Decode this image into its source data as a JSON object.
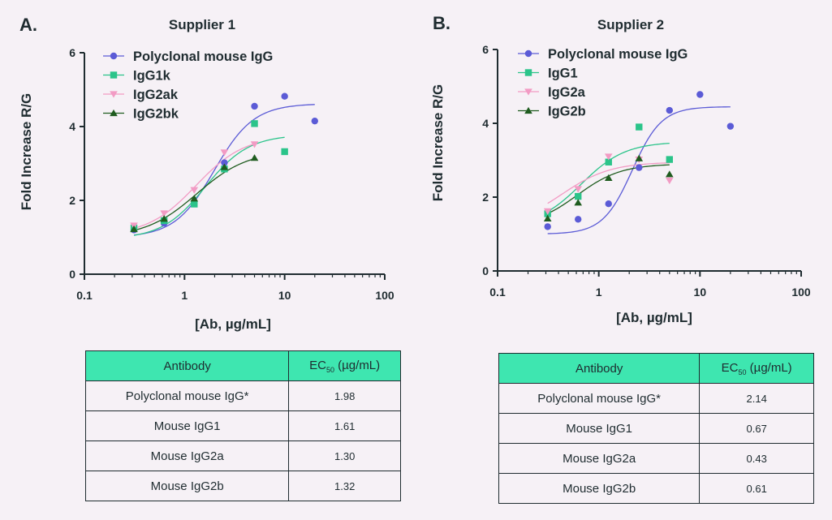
{
  "panels": [
    {
      "letter": "A.",
      "title": "Supplier 1",
      "xlabel": "[Ab, µg/mL]",
      "ylabel": "Fold Increase R/G",
      "x_ticks": [
        "0.1",
        "1",
        "10",
        "100"
      ],
      "y_ticks": [
        "0",
        "2",
        "4",
        "6"
      ],
      "table": {
        "col1": "Antibody",
        "col2_pre": "EC",
        "col2_sub": "50",
        "col2_post": " (µg/mL)",
        "rows": [
          {
            "name": "Polyclonal mouse IgG*",
            "value": "1.98"
          },
          {
            "name": "Mouse IgG1",
            "value": "1.61"
          },
          {
            "name": "Mouse IgG2a",
            "value": "1.30"
          },
          {
            "name": "Mouse IgG2b",
            "value": "1.32"
          }
        ]
      }
    },
    {
      "letter": "B.",
      "title": "Supplier 2",
      "xlabel": "[Ab, µg/mL]",
      "ylabel": "Fold Increase R/G",
      "x_ticks": [
        "0.1",
        "1",
        "10",
        "100"
      ],
      "y_ticks": [
        "0",
        "2",
        "4",
        "6"
      ],
      "table": {
        "col1": "Antibody",
        "col2_pre": "EC",
        "col2_sub": "50",
        "col2_post": " (µg/mL)",
        "rows": [
          {
            "name": "Polyclonal mouse IgG*",
            "value": "2.14"
          },
          {
            "name": "Mouse IgG1",
            "value": "0.67"
          },
          {
            "name": "Mouse IgG2a",
            "value": "0.43"
          },
          {
            "name": "Mouse IgG2b",
            "value": "0.61"
          }
        ]
      }
    }
  ],
  "chart_data": [
    {
      "type": "scatter",
      "title": "Supplier 1",
      "xlabel": "[Ab, µg/mL]",
      "ylabel": "Fold Increase R/G",
      "xscale": "log",
      "xlim": [
        0.1,
        100
      ],
      "ylim": [
        0,
        6
      ],
      "legend": "top-left",
      "series": [
        {
          "name": "Polyclonal mouse IgG",
          "marker": "circle",
          "color": "#5b5bd6",
          "x": [
            0.3125,
            0.625,
            1.25,
            2.5,
            5,
            10,
            20
          ],
          "y": [
            1.2,
            1.38,
            1.92,
            3.02,
            4.55,
            4.82,
            4.15
          ],
          "fit": {
            "bottom": 1.0,
            "top": 4.62,
            "ec50": 1.98,
            "hill": 2.2,
            "xmin": 0.3125,
            "xmax": 20
          }
        },
        {
          "name": "IgG1k",
          "marker": "square",
          "color": "#2bc48a",
          "x": [
            0.3125,
            0.625,
            1.25,
            2.5,
            5,
            10
          ],
          "y": [
            1.25,
            1.45,
            1.9,
            2.85,
            4.08,
            3.32
          ],
          "fit": {
            "bottom": 0.95,
            "top": 3.78,
            "ec50": 1.61,
            "hill": 2.0,
            "xmin": 0.3125,
            "xmax": 10
          }
        },
        {
          "name": "IgG2ak",
          "marker": "triangle-down",
          "color": "#f29bc4",
          "x": [
            0.3125,
            0.625,
            1.25,
            2.5,
            5
          ],
          "y": [
            1.32,
            1.65,
            2.28,
            3.3,
            3.52
          ],
          "fit": {
            "bottom": 1.05,
            "top": 3.75,
            "ec50": 1.3,
            "hill": 1.8,
            "xmin": 0.3125,
            "xmax": 5
          }
        },
        {
          "name": "IgG2bk",
          "marker": "triangle-up",
          "color": "#1f5c1f",
          "x": [
            0.3125,
            0.625,
            1.25,
            2.5,
            5
          ],
          "y": [
            1.22,
            1.5,
            2.05,
            2.9,
            3.15
          ],
          "fit": {
            "bottom": 1.0,
            "top": 3.35,
            "ec50": 1.32,
            "hill": 1.7,
            "xmin": 0.3125,
            "xmax": 5
          }
        }
      ]
    },
    {
      "type": "scatter",
      "title": "Supplier 2",
      "xlabel": "[Ab, µg/mL]",
      "ylabel": "Fold Increase R/G",
      "xscale": "log",
      "xlim": [
        0.1,
        100
      ],
      "ylim": [
        0,
        6
      ],
      "legend": "top-left",
      "series": [
        {
          "name": "Polyclonal mouse IgG",
          "marker": "circle",
          "color": "#5b5bd6",
          "x": [
            0.3125,
            0.625,
            1.25,
            2.5,
            5,
            10,
            20
          ],
          "y": [
            1.2,
            1.4,
            1.82,
            2.8,
            4.35,
            4.78,
            3.92
          ],
          "fit": {
            "bottom": 1.0,
            "top": 4.45,
            "ec50": 2.14,
            "hill": 3.0,
            "xmin": 0.3125,
            "xmax": 20
          }
        },
        {
          "name": "IgG1",
          "marker": "square",
          "color": "#2bc48a",
          "x": [
            0.3125,
            0.625,
            1.25,
            2.5,
            5
          ],
          "y": [
            1.55,
            2.02,
            2.95,
            3.9,
            3.02
          ],
          "fit": {
            "bottom": 1.2,
            "top": 3.5,
            "ec50": 0.67,
            "hill": 2.0,
            "xmin": 0.3125,
            "xmax": 5
          }
        },
        {
          "name": "IgG2a",
          "marker": "triangle-down",
          "color": "#f29bc4",
          "x": [
            0.3125,
            0.625,
            1.25,
            2.5,
            5
          ],
          "y": [
            1.62,
            2.22,
            3.1,
            3.02,
            2.45
          ],
          "fit": {
            "bottom": 1.2,
            "top": 2.95,
            "ec50": 0.43,
            "hill": 1.8,
            "xmin": 0.3125,
            "xmax": 5
          }
        },
        {
          "name": "IgG2b",
          "marker": "triangle-up",
          "color": "#1f5c1f",
          "x": [
            0.3125,
            0.625,
            1.25,
            2.5,
            5
          ],
          "y": [
            1.42,
            1.85,
            2.52,
            3.05,
            2.62
          ],
          "fit": {
            "bottom": 1.2,
            "top": 2.9,
            "ec50": 0.61,
            "hill": 2.0,
            "xmin": 0.3125,
            "xmax": 5
          }
        }
      ]
    }
  ]
}
